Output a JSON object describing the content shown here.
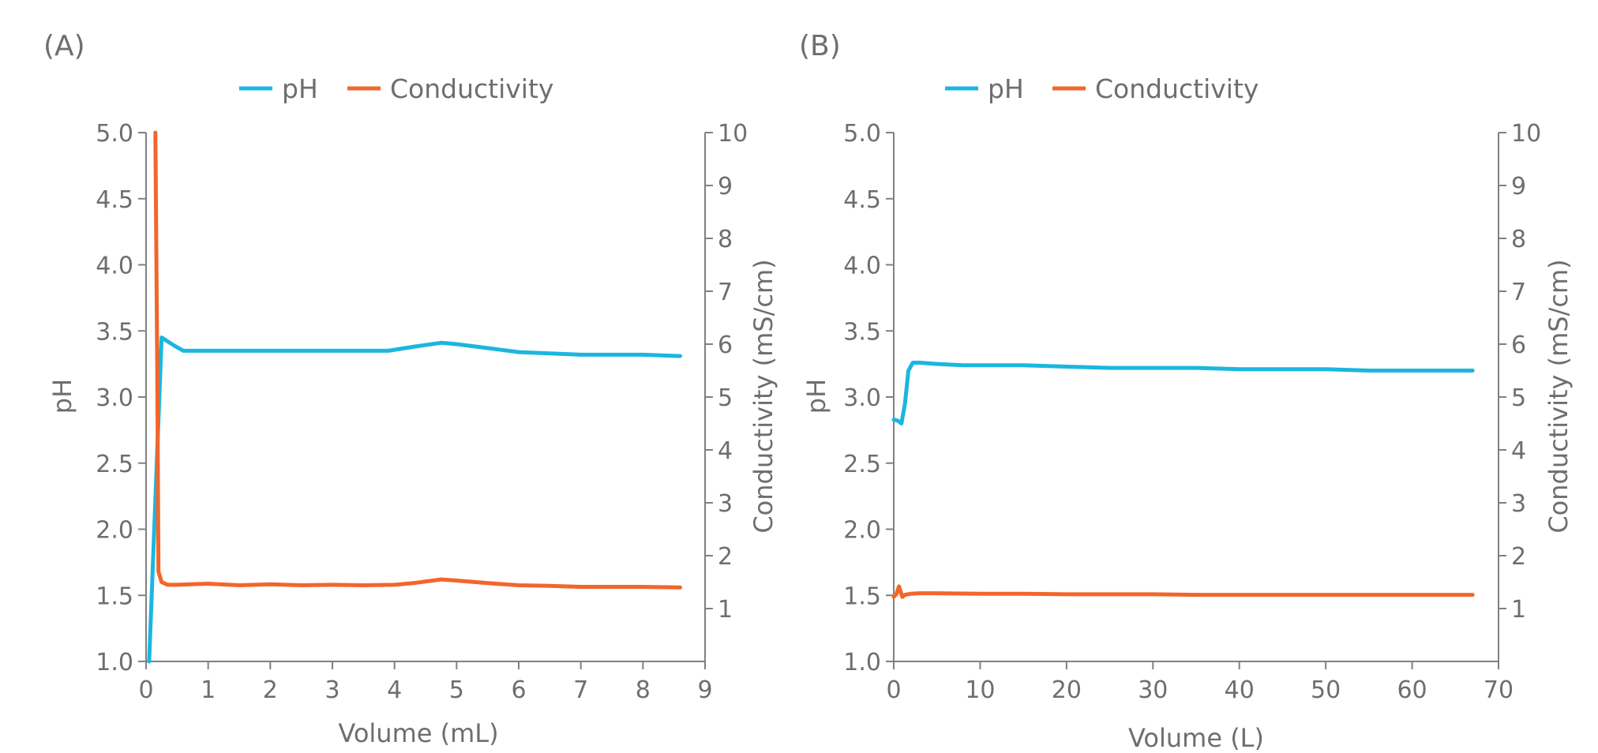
{
  "colors": {
    "ph": "#1bb6e0",
    "conductivity": "#f2662a",
    "axis": "#808080",
    "text": "#6d6e71"
  },
  "chart_data": [
    {
      "type": "line",
      "panel_label": "(A)",
      "legend": {
        "placement": "top-center",
        "items": [
          "pH",
          "Conductivity"
        ]
      },
      "xlabel": "Volume (mL)",
      "ylabel_left": "pH",
      "ylabel_right": "Conductivity (mS/cm)",
      "xlim": [
        0,
        9
      ],
      "ylim_left": [
        1.0,
        5.0
      ],
      "ylim_right": [
        0,
        10
      ],
      "x_ticks": [
        "0",
        "1",
        "2",
        "3",
        "4",
        "5",
        "6",
        "7",
        "8",
        "9"
      ],
      "y_left_ticks": [
        "1.0",
        "1.5",
        "2.0",
        "2.5",
        "3.0",
        "3.5",
        "4.0",
        "4.5",
        "5.0"
      ],
      "y_right_ticks": [
        "1",
        "2",
        "3",
        "4",
        "5",
        "6",
        "7",
        "8",
        "9",
        "10"
      ],
      "grid": false,
      "series": [
        {
          "name": "pH",
          "axis": "left",
          "color": "#1bb6e0",
          "x": [
            0.05,
            0.25,
            0.45,
            0.6,
            1.0,
            2.0,
            3.0,
            3.9,
            4.3,
            4.75,
            5.0,
            5.5,
            6.0,
            6.5,
            7.0,
            8.0,
            8.6
          ],
          "y": [
            1.0,
            3.45,
            3.39,
            3.35,
            3.35,
            3.35,
            3.35,
            3.35,
            3.38,
            3.41,
            3.4,
            3.37,
            3.34,
            3.33,
            3.32,
            3.32,
            3.31
          ]
        },
        {
          "name": "Conductivity",
          "axis": "right",
          "color": "#f2662a",
          "x": [
            0.15,
            0.18,
            0.2,
            0.25,
            0.35,
            0.5,
            1.0,
            1.5,
            2.0,
            2.5,
            3.0,
            3.5,
            4.0,
            4.3,
            4.75,
            5.0,
            5.5,
            6.0,
            6.5,
            7.0,
            7.5,
            8.0,
            8.6
          ],
          "y": [
            10.0,
            5.5,
            1.7,
            1.5,
            1.45,
            1.45,
            1.47,
            1.44,
            1.46,
            1.44,
            1.45,
            1.44,
            1.45,
            1.48,
            1.55,
            1.53,
            1.48,
            1.44,
            1.43,
            1.41,
            1.41,
            1.41,
            1.4
          ]
        }
      ]
    },
    {
      "type": "line",
      "panel_label": "(B)",
      "legend": {
        "placement": "top-center",
        "items": [
          "pH",
          "Conductivity"
        ]
      },
      "xlabel": "Volume (L)",
      "ylabel_left": "pH",
      "ylabel_right": "Conductivity (mS/cm)",
      "xlim": [
        0,
        70
      ],
      "ylim_left": [
        1.0,
        5.0
      ],
      "ylim_right": [
        0,
        10
      ],
      "x_ticks": [
        "0",
        "10",
        "20",
        "30",
        "40",
        "50",
        "60",
        "70"
      ],
      "y_left_ticks": [
        "1.0",
        "1.5",
        "2.0",
        "2.5",
        "3.0",
        "3.5",
        "4.0",
        "4.5",
        "5.0"
      ],
      "y_right_ticks": [
        "1",
        "2",
        "3",
        "4",
        "5",
        "6",
        "7",
        "8",
        "9",
        "10"
      ],
      "grid": false,
      "series": [
        {
          "name": "pH",
          "axis": "left",
          "color": "#1bb6e0",
          "x": [
            0,
            0.5,
            0.9,
            1.3,
            1.7,
            2.2,
            3,
            5,
            8,
            10,
            15,
            20,
            25,
            30,
            35,
            40,
            45,
            50,
            55,
            60,
            65,
            67
          ],
          "y": [
            2.83,
            2.82,
            2.8,
            2.95,
            3.2,
            3.26,
            3.26,
            3.25,
            3.24,
            3.24,
            3.24,
            3.23,
            3.22,
            3.22,
            3.22,
            3.21,
            3.21,
            3.21,
            3.2,
            3.2,
            3.2,
            3.2
          ]
        },
        {
          "name": "Conductivity",
          "axis": "right",
          "color": "#f2662a",
          "x": [
            0,
            0.3,
            0.6,
            0.8,
            1.0,
            1.3,
            2,
            3,
            5,
            10,
            15,
            20,
            25,
            30,
            35,
            40,
            45,
            50,
            55,
            60,
            65,
            67
          ],
          "y": [
            1.22,
            1.27,
            1.42,
            1.32,
            1.22,
            1.26,
            1.28,
            1.29,
            1.29,
            1.28,
            1.28,
            1.27,
            1.27,
            1.27,
            1.26,
            1.26,
            1.26,
            1.26,
            1.26,
            1.26,
            1.26,
            1.26
          ]
        }
      ]
    }
  ]
}
